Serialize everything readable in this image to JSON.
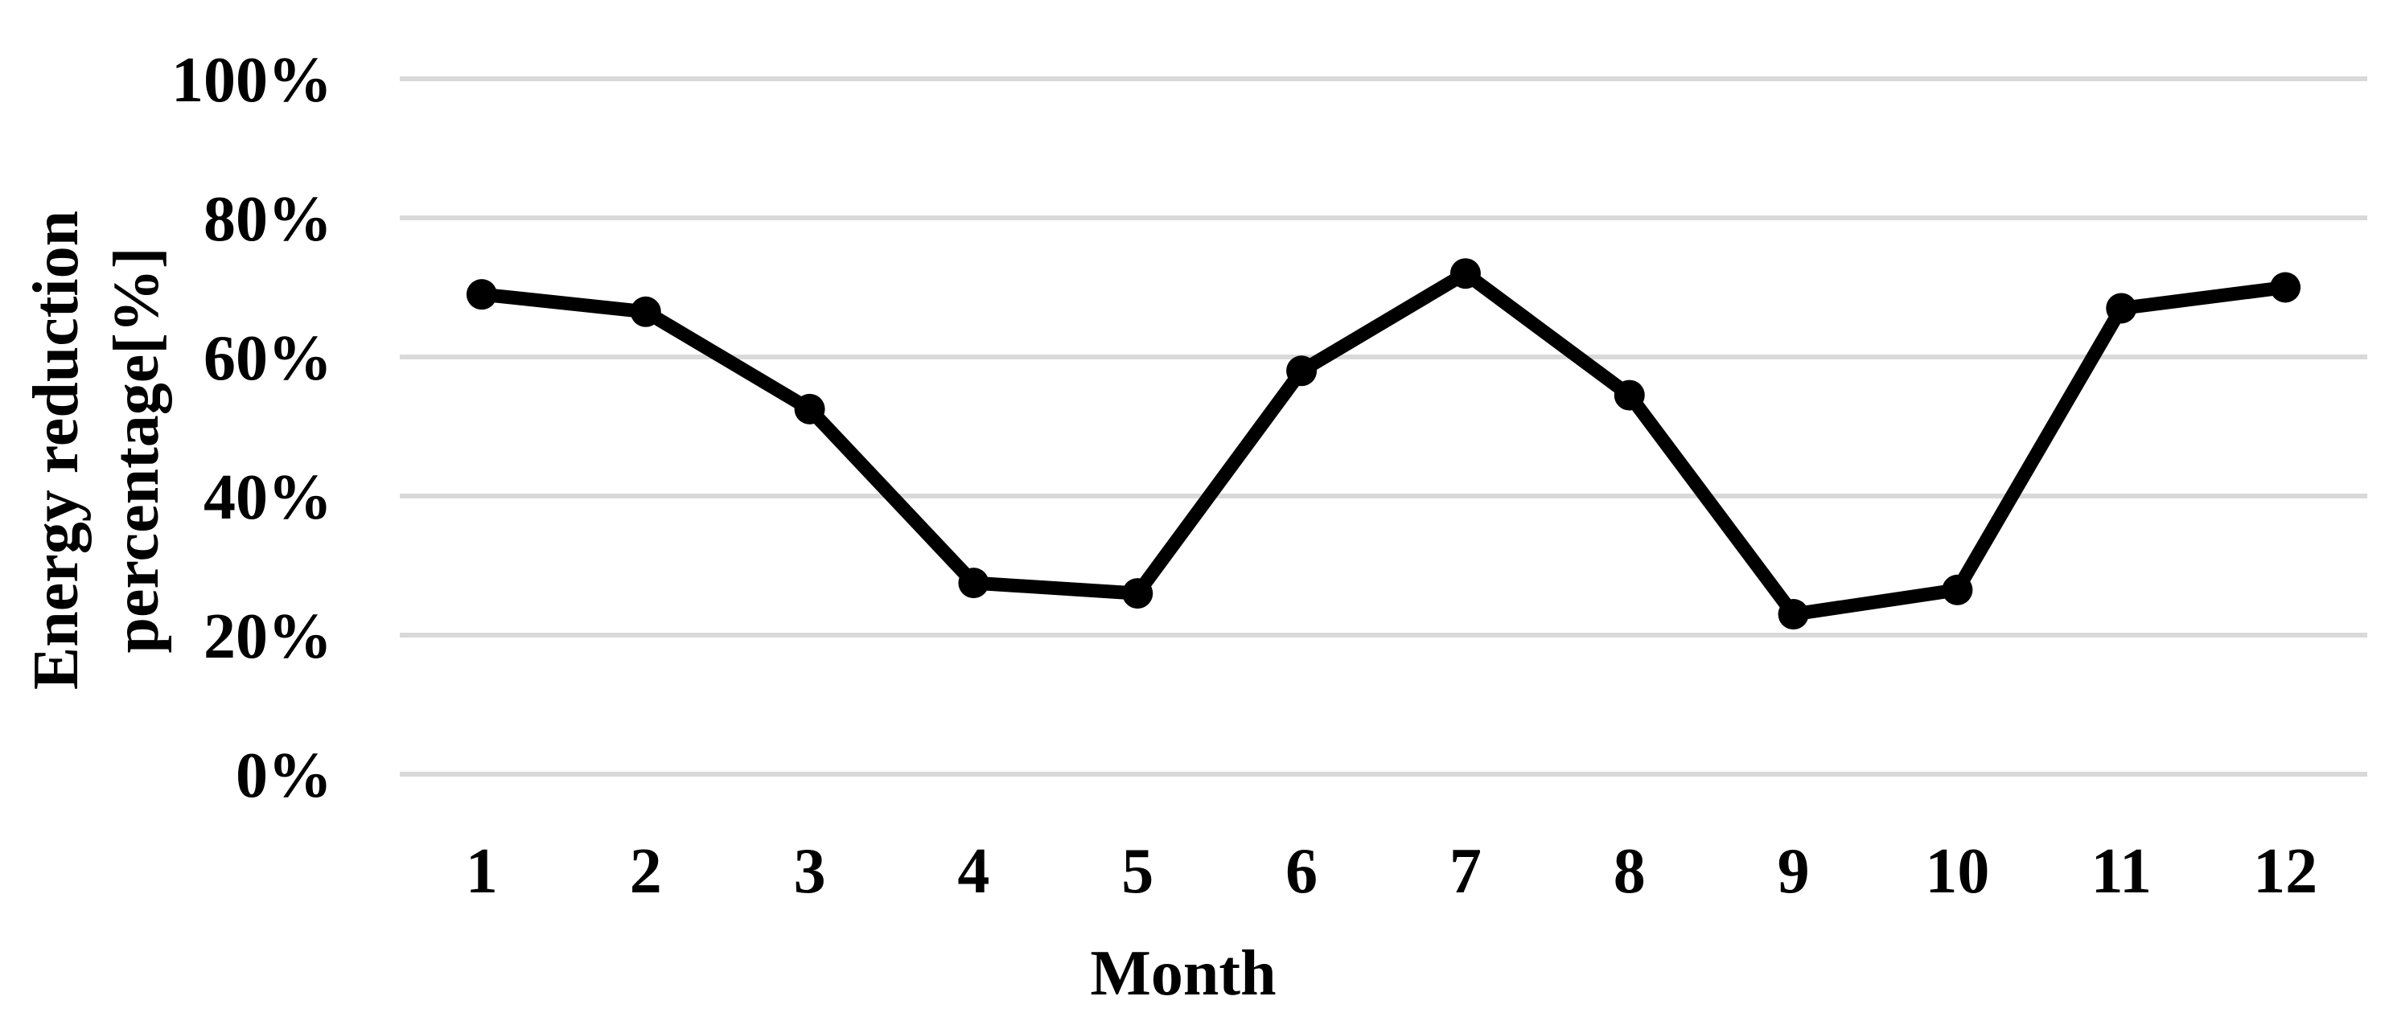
{
  "chart_data": {
    "type": "line",
    "title": "",
    "xlabel": "Month",
    "ylabel": "Energy reduction percentage[%]",
    "ylabel_lines": [
      "Energy reduction",
      "percentage[%]"
    ],
    "categories": [
      "1",
      "2",
      "3",
      "4",
      "5",
      "6",
      "7",
      "8",
      "9",
      "10",
      "11",
      "12"
    ],
    "values": [
      69,
      66.5,
      52.5,
      27.5,
      26,
      58,
      72,
      54.5,
      23,
      26.5,
      67,
      70
    ],
    "ylim": [
      0,
      100
    ],
    "ytick_step": 20,
    "ytick_labels": [
      "0%",
      "20%",
      "40%",
      "60%",
      "80%",
      "100%"
    ],
    "grid": "horizontal-only",
    "legend": "none",
    "marker": "filled-circle",
    "colors": {
      "series_line": "#000000",
      "marker": "#000000",
      "gridline": "#d9d9d9",
      "text": "#000000",
      "background": "#ffffff"
    }
  }
}
